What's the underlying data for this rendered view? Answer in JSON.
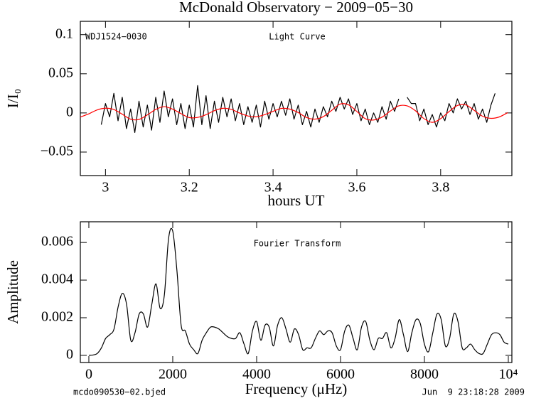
{
  "footer": {
    "left": "mcdo090530−02.bjed",
    "right": "Jun  9 23:18:28 2009"
  },
  "chart_data": [
    {
      "type": "line",
      "title": "McDonald Observatory − 2009−05−30",
      "annotations": [
        "WDJ1524−0030",
        "Light Curve"
      ],
      "x_label": "hours UT",
      "y_label": "I/I₀",
      "xlim": [
        2.94,
        3.97
      ],
      "ylim": [
        -0.08,
        0.117
      ],
      "xticks": [
        3,
        3.2,
        3.4,
        3.6,
        3.8
      ],
      "yticks": [
        {
          "value": -0.05,
          "label": "−0.05"
        },
        0,
        0.05,
        0.1
      ],
      "series": [
        {
          "color": "#000000",
          "x": [
            2.99,
            3.0,
            3.01,
            3.02,
            3.03,
            3.04,
            3.05,
            3.06,
            3.07,
            3.08,
            3.09,
            3.1,
            3.11,
            3.12,
            3.13,
            3.14,
            3.15,
            3.16,
            3.17,
            3.18,
            3.19,
            3.2,
            3.21,
            3.22,
            3.23,
            3.24,
            3.25,
            3.26,
            3.27,
            3.28,
            3.29,
            3.3,
            3.31,
            3.32,
            3.33,
            3.34,
            3.35,
            3.36,
            3.37,
            3.38,
            3.39,
            3.4,
            3.41,
            3.42,
            3.43,
            3.44,
            3.45,
            3.46,
            3.47,
            3.48,
            3.49,
            3.5,
            3.51,
            3.52,
            3.53,
            3.54,
            3.55,
            3.56,
            3.57,
            3.58,
            3.59,
            3.6,
            3.61,
            3.62,
            3.63,
            3.64,
            3.65,
            3.66,
            3.67,
            3.68,
            3.69,
            3.7,
            3.71,
            3.72,
            3.73,
            3.74,
            3.75,
            3.76,
            3.77,
            3.78,
            3.79,
            3.8,
            3.81,
            3.82,
            3.83,
            3.84,
            3.85,
            3.86,
            3.87,
            3.88,
            3.89,
            3.9,
            3.91,
            3.92,
            3.93
          ],
          "values": [
            -0.015,
            0.012,
            -0.005,
            0.025,
            -0.01,
            0.02,
            -0.02,
            0.005,
            -0.025,
            0.015,
            -0.018,
            0.01,
            -0.022,
            0.02,
            -0.012,
            0.028,
            -0.005,
            0.018,
            -0.015,
            0.012,
            -0.02,
            0.01,
            -0.018,
            0.035,
            -0.015,
            0.022,
            -0.02,
            0.015,
            -0.012,
            0.02,
            -0.005,
            0.018,
            -0.01,
            0.012,
            -0.015,
            0.008,
            -0.012,
            0.01,
            -0.018,
            0.015,
            -0.008,
            0.012,
            -0.005,
            0.015,
            -0.003,
            0.018,
            -0.008,
            0.01,
            -0.015,
            0.002,
            -0.018,
            0.005,
            -0.012,
            0.008,
            -0.005,
            0.015,
            0.002,
            0.02,
            0.005,
            0.018,
            -0.002,
            0.012,
            -0.01,
            0.005,
            -0.015,
            0,
            -0.012,
            0.008,
            -0.008,
            0.015,
            0.002,
            0.018,
            null,
            0.02,
            0.012,
            0.012,
            -0.01,
            0.005,
            -0.015,
            -0.002,
            -0.018,
            0,
            -0.01,
            0.012,
            0,
            0.018,
            0.005,
            0.015,
            -0.002,
            0.012,
            -0.008,
            0.005,
            -0.012,
            0.01,
            0.025
          ]
        },
        {
          "color": "#ff0000",
          "smooth": true,
          "x": [
            2.94,
            2.96,
            2.98,
            3.0,
            3.02,
            3.04,
            3.06,
            3.08,
            3.1,
            3.12,
            3.14,
            3.16,
            3.18,
            3.2,
            3.22,
            3.24,
            3.26,
            3.28,
            3.3,
            3.32,
            3.34,
            3.36,
            3.38,
            3.4,
            3.42,
            3.44,
            3.46,
            3.48,
            3.5,
            3.52,
            3.54,
            3.56,
            3.58,
            3.6,
            3.62,
            3.64,
            3.66,
            3.68,
            3.7,
            3.72,
            3.74,
            3.76,
            3.78,
            3.8,
            3.82,
            3.84,
            3.86,
            3.88,
            3.9,
            3.92,
            3.94,
            3.96
          ],
          "values": [
            -0.0053,
            -0.0012,
            0.0038,
            0.006,
            0.0044,
            -0.0016,
            -0.008,
            -0.0083,
            -0.0025,
            0.0045,
            0.008,
            0.0049,
            -0.0008,
            -0.0059,
            -0.0057,
            -0.0022,
            0.0029,
            0.0059,
            0.0046,
            -0.0001,
            -0.0039,
            -0.0049,
            -0.0022,
            0.002,
            0.0058,
            0.0049,
            0.0005,
            -0.0058,
            -0.0079,
            -0.0047,
            0.0033,
            0.0113,
            0.0104,
            0.0019,
            -0.0073,
            -0.009,
            -0.0054,
            0.0024,
            0.009,
            0.009,
            0.0027,
            -0.0072,
            -0.012,
            -0.0073,
            0.0017,
            0.0095,
            0.0103,
            0.0033,
            -0.0042,
            -0.0069,
            -0.0051,
            0.0004
          ]
        }
      ]
    },
    {
      "type": "line",
      "annotations": [
        "Fourier Transform"
      ],
      "x_label": "Frequency (μHz)",
      "y_label": "Amplitude",
      "xlim": [
        -203,
        10085
      ],
      "ylim": [
        -0.00038,
        0.0071
      ],
      "xticks": [
        0,
        2000,
        4000,
        6000,
        8000,
        {
          "value": 10000,
          "label": "10⁴"
        }
      ],
      "yticks": [
        0,
        0.002,
        0.004,
        0.006
      ],
      "series": [
        {
          "color": "#000000",
          "smooth": true,
          "x": [
            0,
            100,
            200,
            300,
            400,
            500,
            600,
            700,
            800,
            900,
            1000,
            1100,
            1200,
            1300,
            1400,
            1500,
            1600,
            1700,
            1800,
            1900,
            2000,
            2100,
            2200,
            2300,
            2400,
            2500,
            2600,
            2700,
            2800,
            2900,
            3000,
            3100,
            3200,
            3300,
            3400,
            3500,
            3600,
            3700,
            3800,
            3900,
            4000,
            4100,
            4200,
            4300,
            4400,
            4500,
            4600,
            4700,
            4800,
            4900,
            5000,
            5100,
            5200,
            5300,
            5400,
            5500,
            5600,
            5700,
            5800,
            5900,
            6000,
            6100,
            6200,
            6300,
            6400,
            6500,
            6600,
            6700,
            6800,
            6900,
            7000,
            7100,
            7200,
            7300,
            7400,
            7500,
            7600,
            7700,
            7800,
            7900,
            8000,
            8100,
            8200,
            8300,
            8400,
            8500,
            8600,
            8700,
            8800,
            8900,
            9000,
            9100,
            9200,
            9300,
            9400,
            9500,
            9600,
            9700,
            9800,
            9900,
            10000
          ],
          "values": [
            0,
            2e-05,
            0.0001,
            0.0004,
            0.0009,
            0.0011,
            0.0014,
            0.0026,
            0.0033,
            0.0027,
            0.0008,
            0.0012,
            0.0022,
            0.0022,
            0.0015,
            0.0027,
            0.0038,
            0.0025,
            0.0032,
            0.0062,
            0.0066,
            0.0045,
            0.0016,
            0.0013,
            0.0006,
            0.0003,
            0.0001,
            0.0008,
            0.0012,
            0.0015,
            0.0015,
            0.0014,
            0.0012,
            0.001,
            0.0009,
            0.0009,
            0.0012,
            0.0006,
            0.0001,
            0.0013,
            0.0018,
            0.0008,
            0.0016,
            0.0015,
            0.0005,
            0.0016,
            0.002,
            0.0014,
            0.0007,
            0.0014,
            0.0011,
            0.0003,
            0.0004,
            0.0004,
            0.0009,
            0.0013,
            0.0011,
            0.0013,
            0.0012,
            0.0005,
            0.0003,
            0.0013,
            0.0016,
            0.0009,
            0.0003,
            0.0015,
            0.0018,
            0.0008,
            0.0003,
            0.0009,
            0.0009,
            0.0012,
            0.0004,
            0.0009,
            0.0019,
            0.0011,
            0.0002,
            0.0012,
            0.0019,
            0.0017,
            0.0006,
            0.0002,
            0.0012,
            0.0022,
            0.0019,
            0.0005,
            0.0009,
            0.0022,
            0.0018,
            0.0004,
            0.0004,
            0.0006,
            0.0003,
            0.0001,
            0.0001,
            0.0006,
            0.0011,
            0.0012,
            0.0011,
            0.0007,
            0.0006
          ]
        }
      ]
    }
  ]
}
